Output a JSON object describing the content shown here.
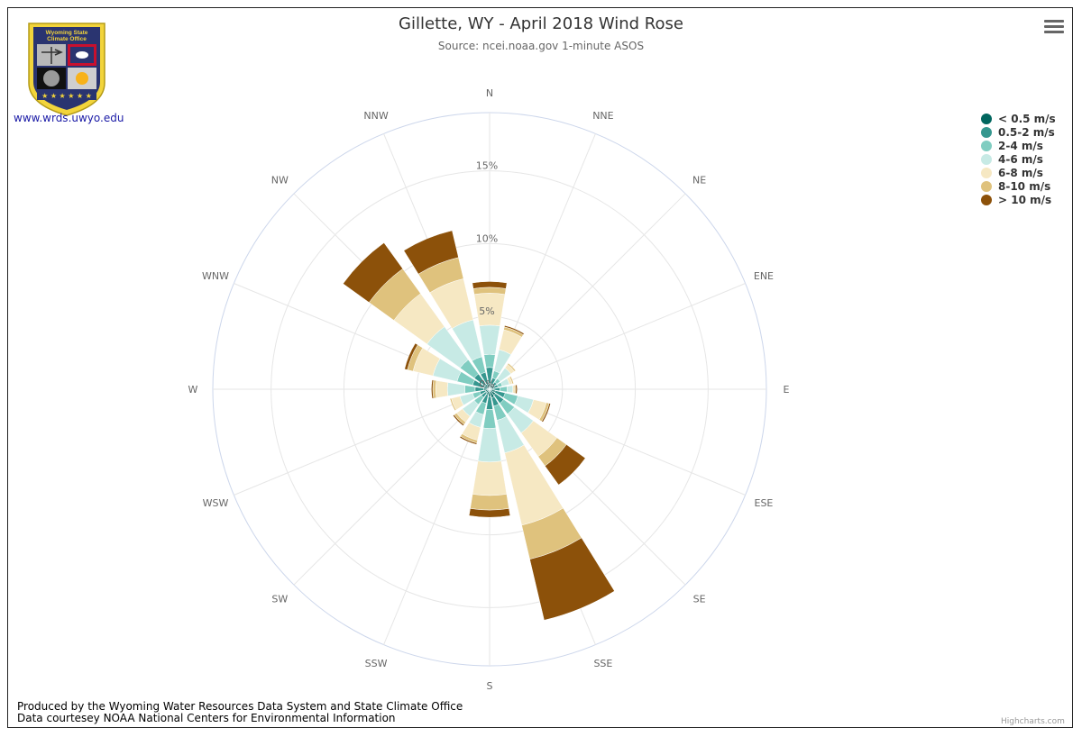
{
  "title": "Gillette, WY - April 2018 Wind Rose",
  "subtitle": "Source: ncei.noaa.gov 1-minute ASOS",
  "logo": {
    "banner_line1": "Wyoming State",
    "banner_line2": "Climate Office",
    "link_text": "www.wrds.uwyo.edu"
  },
  "footer": {
    "line1": "Produced by the Wyoming Water Resources Data System and State Climate Office",
    "line2": "Data courtesey NOAA National Centers for Environmental Information"
  },
  "credits": "Highcharts.com",
  "chart_data": {
    "type": "windrose",
    "directions": [
      "N",
      "NNE",
      "NE",
      "ENE",
      "E",
      "ESE",
      "SE",
      "SSE",
      "S",
      "SSW",
      "SW",
      "WSW",
      "W",
      "WNW",
      "NW",
      "NNW"
    ],
    "radial_ticks": [
      "0%",
      "5%",
      "10%",
      "15%"
    ],
    "radial_max": 19,
    "series": [
      {
        "name": "< 0.5 m/s",
        "color": "#01665e",
        "values": [
          0.4,
          0.3,
          0.3,
          0.3,
          0.3,
          0.4,
          0.5,
          0.6,
          0.5,
          0.4,
          0.3,
          0.3,
          0.4,
          0.4,
          0.4,
          0.4
        ]
      },
      {
        "name": "0.5-2 m/s",
        "color": "#35978f",
        "values": [
          1.1,
          0.5,
          0.3,
          0.3,
          0.4,
          0.7,
          0.7,
          0.6,
          0.9,
          0.6,
          0.4,
          0.4,
          0.6,
          0.8,
          0.9,
          0.8
        ]
      },
      {
        "name": "2-4 m/s",
        "color": "#80cdc1",
        "values": [
          0.9,
          0.5,
          0.3,
          0.3,
          0.5,
          0.9,
          0.9,
          1.0,
          1.3,
          0.8,
          0.6,
          0.5,
          0.7,
          1.1,
          1.2,
          1.1
        ]
      },
      {
        "name": "4-6 m/s",
        "color": "#c7eae5",
        "values": [
          2.0,
          1.5,
          0.9,
          0.5,
          0.4,
          1.1,
          1.6,
          2.3,
          2.3,
          0.9,
          1.0,
          0.9,
          1.2,
          1.7,
          2.8,
          2.6
        ]
      },
      {
        "name": "6-8 m/s",
        "color": "#f6e8c3",
        "values": [
          2.2,
          1.4,
          0.3,
          0.2,
          0.1,
          0.9,
          2.0,
          5.1,
          2.3,
          0.9,
          0.5,
          0.6,
          0.8,
          1.4,
          2.8,
          2.9
        ]
      },
      {
        "name": "8-10 m/s",
        "color": "#dfc27d",
        "values": [
          0.4,
          0.2,
          0.1,
          0.1,
          0.1,
          0.2,
          0.8,
          2.4,
          1.0,
          0.2,
          0.2,
          0.1,
          0.2,
          0.4,
          2.1,
          1.5
        ]
      },
      {
        "name": "> 10 m/s",
        "color": "#8c510a",
        "values": [
          0.4,
          0.1,
          0.0,
          0.0,
          0.1,
          0.1,
          1.6,
          4.3,
          0.5,
          0.1,
          0.1,
          0.0,
          0.1,
          0.2,
          2.2,
          1.9
        ]
      }
    ],
    "legend_position": "top-right"
  }
}
